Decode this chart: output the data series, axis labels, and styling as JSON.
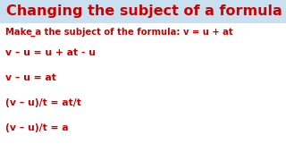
{
  "title": "Changing the subject of a formula",
  "title_color": "#cc0000",
  "title_fontsize": 11.5,
  "subtitle": "Make ̲a the subject of the formula: v = u + at",
  "subtitle_color": "#cc0000",
  "subtitle_fontsize": 7.2,
  "lines": [
    "v – u = u + at - u",
    "v – u = at",
    "(v – u)/t = at/t",
    "(v – u)/t = a"
  ],
  "line_color": "#cc0000",
  "line_fontsize": 7.8,
  "background_color": "#ffffff",
  "title_bg_color": "#c8e0f0",
  "font_family": "Comic Sans MS"
}
